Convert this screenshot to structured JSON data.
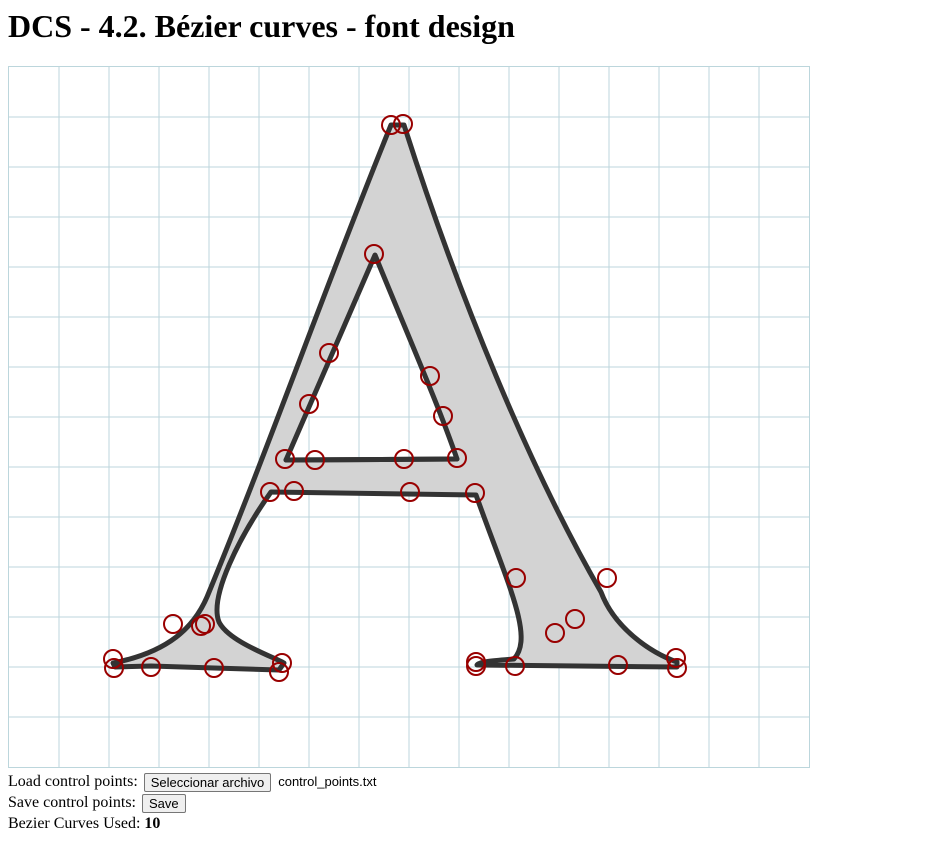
{
  "page": {
    "title": "DCS - 4.2. Bézier curves - font design"
  },
  "colors": {
    "grid": "#bcd6dc",
    "glyph_fill": "#d3d3d3",
    "glyph_stroke": "#333333",
    "control_point": "#990000"
  },
  "load": {
    "label": "Load control points:",
    "button_label": "Seleccionar archivo",
    "file_name": "control_points.txt"
  },
  "save": {
    "label": "Save control points:",
    "button_label": "Save"
  },
  "stats": {
    "label": "Bezier Curves Used:",
    "value": "10"
  }
}
